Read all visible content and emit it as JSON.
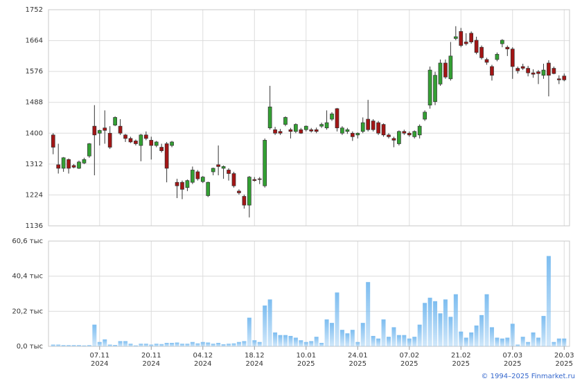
{
  "chart_data": [
    {
      "type": "candlestick",
      "open": [
        1395,
        1310,
        1300,
        1325,
        1308,
        1300,
        1315,
        1335,
        1420,
        1400,
        1415,
        1400,
        1423,
        1420,
        1395,
        1385,
        1378,
        1365,
        1395,
        1380,
        1365,
        1360,
        1370,
        1365,
        1260,
        1260,
        1245,
        1260,
        1290,
        1262,
        1222,
        1290,
        1310,
        1300,
        1295,
        1285,
        1235,
        1220,
        1195,
        1268,
        1270,
        1250,
        1415,
        1410,
        1405,
        1425,
        1410,
        1405,
        1410,
        1410,
        1410,
        1410,
        1420,
        1415,
        1440,
        1470,
        1400,
        1405,
        1400,
        1395,
        1405,
        1440,
        1435,
        1430,
        1425,
        1395,
        1385,
        1370,
        1405,
        1400,
        1390,
        1395,
        1440,
        1480,
        1490,
        1540,
        1600,
        1555,
        1670,
        1690,
        1660,
        1685,
        1665,
        1645,
        1610,
        1590,
        1610,
        1655,
        1645,
        1640,
        1585,
        1590,
        1585,
        1572,
        1575,
        1565,
        1600,
        1585,
        1555,
        1563
      ],
      "high": [
        1400,
        1370,
        1332,
        1328,
        1312,
        1322,
        1330,
        1372,
        1480,
        1410,
        1465,
        1420,
        1448,
        1440,
        1398,
        1390,
        1382,
        1398,
        1405,
        1390,
        1378,
        1370,
        1375,
        1378,
        1270,
        1265,
        1268,
        1305,
        1295,
        1278,
        1262,
        1302,
        1365,
        1308,
        1300,
        1290,
        1240,
        1225,
        1278,
        1275,
        1275,
        1385,
        1535,
        1418,
        1412,
        1448,
        1415,
        1428,
        1415,
        1422,
        1415,
        1416,
        1430,
        1465,
        1460,
        1472,
        1420,
        1415,
        1405,
        1402,
        1445,
        1495,
        1440,
        1435,
        1428,
        1400,
        1390,
        1408,
        1410,
        1405,
        1408,
        1425,
        1465,
        1590,
        1575,
        1610,
        1610,
        1660,
        1705,
        1700,
        1685,
        1690,
        1675,
        1650,
        1615,
        1595,
        1630,
        1668,
        1650,
        1645,
        1590,
        1598,
        1592,
        1582,
        1580,
        1598,
        1608,
        1590,
        1565,
        1570
      ],
      "low": [
        1340,
        1285,
        1290,
        1285,
        1300,
        1298,
        1312,
        1330,
        1280,
        1365,
        1370,
        1355,
        1420,
        1395,
        1375,
        1372,
        1365,
        1320,
        1380,
        1325,
        1360,
        1345,
        1260,
        1360,
        1215,
        1212,
        1235,
        1255,
        1265,
        1258,
        1218,
        1280,
        1280,
        1270,
        1265,
        1245,
        1225,
        1185,
        1160,
        1262,
        1255,
        1245,
        1410,
        1395,
        1395,
        1420,
        1385,
        1400,
        1398,
        1405,
        1402,
        1400,
        1415,
        1410,
        1435,
        1405,
        1395,
        1398,
        1378,
        1385,
        1400,
        1405,
        1405,
        1395,
        1390,
        1385,
        1360,
        1365,
        1395,
        1390,
        1385,
        1385,
        1435,
        1470,
        1480,
        1535,
        1555,
        1550,
        1665,
        1645,
        1650,
        1655,
        1625,
        1610,
        1595,
        1550,
        1605,
        1645,
        1620,
        1555,
        1570,
        1580,
        1562,
        1558,
        1540,
        1555,
        1505,
        1568,
        1540,
        1548
      ],
      "close": [
        1360,
        1300,
        1330,
        1300,
        1303,
        1318,
        1325,
        1370,
        1395,
        1408,
        1408,
        1360,
        1445,
        1400,
        1385,
        1375,
        1370,
        1395,
        1385,
        1365,
        1375,
        1350,
        1300,
        1375,
        1250,
        1240,
        1265,
        1295,
        1270,
        1275,
        1260,
        1300,
        1305,
        1305,
        1285,
        1250,
        1230,
        1195,
        1275,
        1265,
        1268,
        1380,
        1475,
        1400,
        1400,
        1445,
        1405,
        1425,
        1400,
        1420,
        1406,
        1405,
        1425,
        1430,
        1455,
        1415,
        1415,
        1410,
        1390,
        1400,
        1430,
        1410,
        1410,
        1400,
        1395,
        1390,
        1380,
        1405,
        1400,
        1395,
        1405,
        1420,
        1460,
        1580,
        1565,
        1600,
        1560,
        1620,
        1675,
        1650,
        1655,
        1660,
        1630,
        1615,
        1602,
        1565,
        1625,
        1665,
        1640,
        1590,
        1578,
        1585,
        1572,
        1568,
        1570,
        1580,
        1565,
        1570,
        1552,
        1552
      ],
      "up_color": "#33a033",
      "down_color": "#a31515",
      "ylim": [
        1136,
        1752
      ],
      "yticks": [
        1136,
        1224,
        1312,
        1400,
        1488,
        1576,
        1664,
        1752
      ],
      "grid": true
    },
    {
      "type": "bar",
      "categories": [
        null,
        null,
        null,
        null,
        null,
        null,
        null,
        null,
        null,
        [
          "07.11",
          "2024"
        ],
        null,
        null,
        null,
        null,
        null,
        null,
        null,
        null,
        null,
        [
          "20.11",
          "2024"
        ],
        null,
        null,
        null,
        null,
        null,
        null,
        null,
        null,
        null,
        [
          "04.12",
          "2024"
        ],
        null,
        null,
        null,
        null,
        null,
        null,
        null,
        null,
        null,
        [
          "18.12",
          "2024"
        ],
        null,
        null,
        null,
        null,
        null,
        null,
        null,
        null,
        null,
        [
          "10.01",
          "2025"
        ],
        null,
        null,
        null,
        null,
        null,
        null,
        null,
        null,
        null,
        [
          "24.01",
          "2025"
        ],
        null,
        null,
        null,
        null,
        null,
        null,
        null,
        null,
        null,
        [
          "07.02",
          "2025"
        ],
        null,
        null,
        null,
        null,
        null,
        null,
        null,
        null,
        null,
        [
          "21.02",
          "2025"
        ],
        null,
        null,
        null,
        null,
        null,
        null,
        null,
        null,
        null,
        [
          "07.03",
          "2025"
        ],
        null,
        null,
        null,
        null,
        null,
        null,
        null,
        null,
        null,
        [
          "20.03",
          "2025"
        ]
      ],
      "values": [
        1,
        1,
        0.7,
        0.7,
        0.7,
        0.7,
        0.5,
        0.7,
        12.5,
        2.5,
        4,
        1,
        0.8,
        3,
        3,
        1.5,
        0.5,
        1.5,
        1.5,
        1,
        1.5,
        1.3,
        2,
        2,
        2.2,
        1.5,
        1.5,
        2.5,
        1.7,
        2.5,
        2.2,
        1.5,
        2,
        1.2,
        1.5,
        1.7,
        2.5,
        3,
        16.5,
        3.5,
        2.5,
        23.5,
        27,
        8,
        6.5,
        6.5,
        6,
        5,
        3.5,
        2.5,
        3,
        5.5,
        2,
        15.5,
        13.5,
        31,
        9.5,
        7.5,
        9.5,
        2.5,
        13.5,
        37,
        6,
        4.5,
        15.5,
        5.5,
        11,
        6.5,
        6.5,
        4.5,
        5.5,
        12.5,
        25,
        28,
        26,
        19,
        27,
        17,
        30,
        8.5,
        5,
        8,
        12,
        18,
        30,
        11,
        5,
        4.5,
        5,
        13,
        1,
        5.5,
        2.5,
        8,
        5,
        17.5,
        52,
        2.5,
        4.5,
        4.5
      ],
      "color": "#7dbdf0",
      "ylim": [
        0,
        60.6
      ],
      "yticks": [
        {
          "value": 0,
          "label": "0,0 тыс"
        },
        {
          "value": 20.2,
          "label": "20,2 тыс"
        },
        {
          "value": 40.4,
          "label": "40,4 тыс"
        },
        {
          "value": 60.6,
          "label": "60,6 тыс"
        }
      ],
      "grid": true
    }
  ],
  "copyright": "© 1994–2025 Finmarket.ru"
}
